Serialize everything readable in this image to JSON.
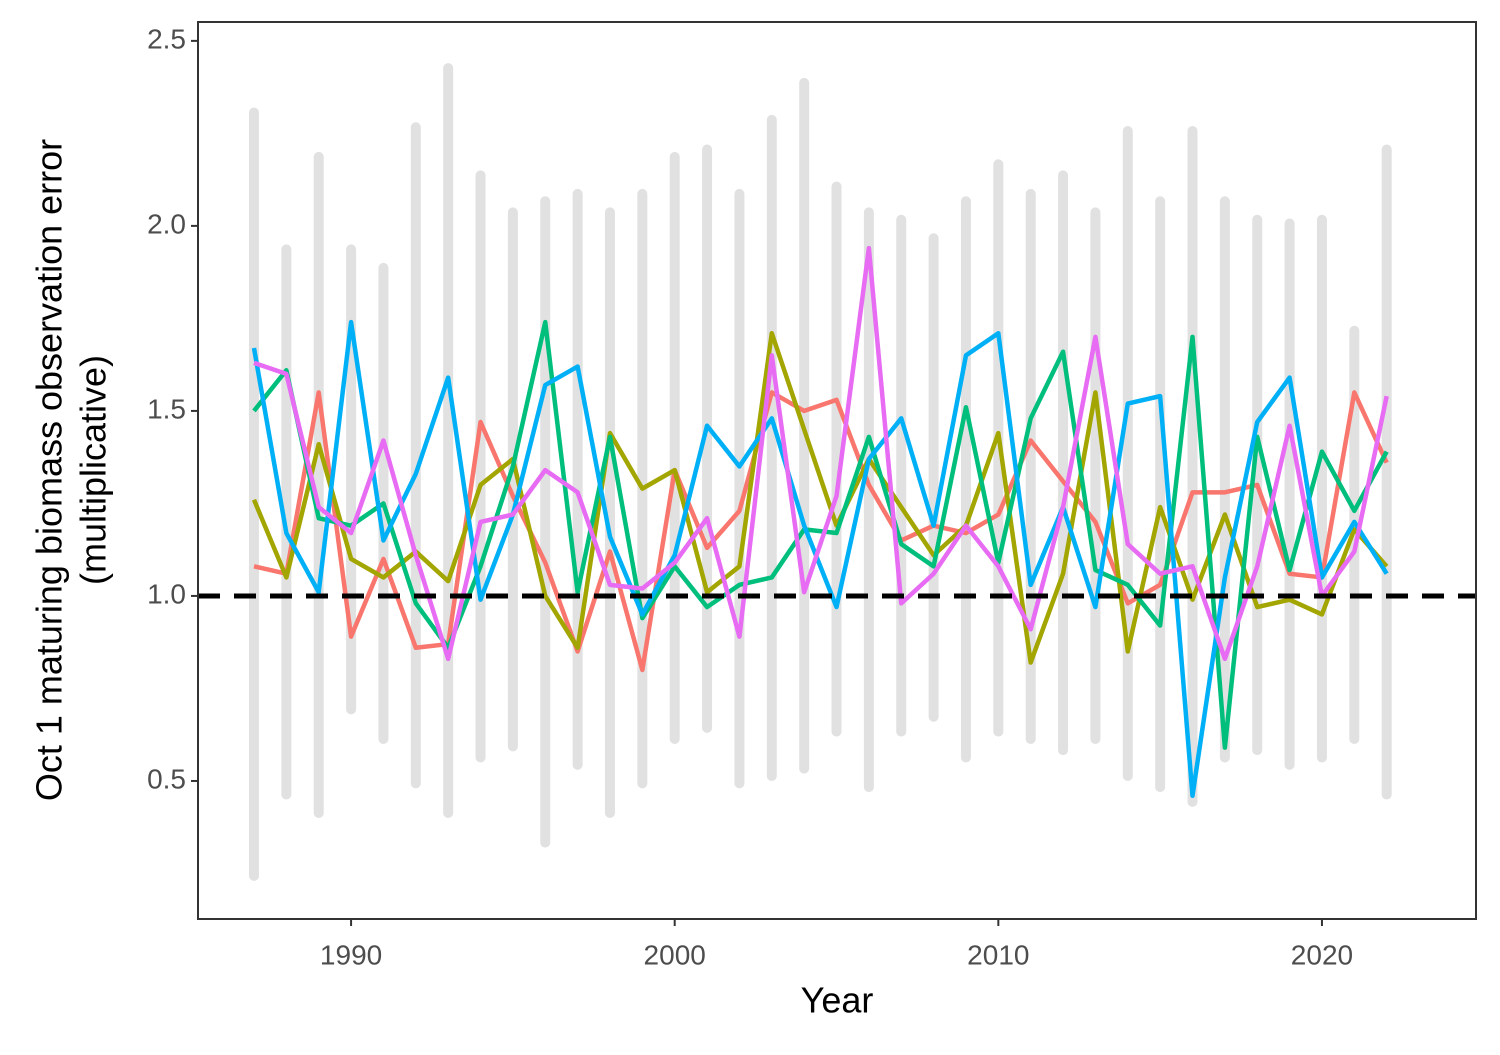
{
  "chart_data": {
    "type": "line",
    "xlabel": "Year",
    "ylabel": [
      "Oct 1 maturing biomass observation error",
      "(multiplicative)"
    ],
    "x": [
      1987,
      1988,
      1989,
      1990,
      1991,
      1992,
      1993,
      1994,
      1995,
      1996,
      1997,
      1998,
      1999,
      2000,
      2001,
      2002,
      2003,
      2004,
      2005,
      2006,
      2007,
      2008,
      2009,
      2010,
      2011,
      2012,
      2013,
      2014,
      2015,
      2016,
      2017,
      2018,
      2019,
      2020,
      2021,
      2022
    ],
    "xlim": [
      1985.27,
      2024.76
    ],
    "xticks": [
      1990,
      2000,
      2010,
      2020
    ],
    "ylim": [
      0.127,
      2.551
    ],
    "yticks": [
      0.5,
      {
        "value": 1,
        "label": "1.0"
      },
      1.5,
      {
        "value": 2,
        "label": "2.0"
      },
      2.5
    ],
    "hline": 1,
    "background": {
      "color": "#bdbdbd",
      "low": [
        0.23,
        0.45,
        0.4,
        0.68,
        0.6,
        0.48,
        0.4,
        0.55,
        0.58,
        0.32,
        0.53,
        0.4,
        0.48,
        0.6,
        0.63,
        0.48,
        0.5,
        0.52,
        0.62,
        0.47,
        0.62,
        0.66,
        0.55,
        0.62,
        0.6,
        0.57,
        0.6,
        0.5,
        0.47,
        0.43,
        0.55,
        0.57,
        0.53,
        0.55,
        0.6,
        0.45
      ],
      "high": [
        2.32,
        1.95,
        2.2,
        1.95,
        1.9,
        2.28,
        2.44,
        2.15,
        2.05,
        2.08,
        2.1,
        2.05,
        2.1,
        2.2,
        2.22,
        2.1,
        2.3,
        2.4,
        2.12,
        2.05,
        2.03,
        1.98,
        2.08,
        2.18,
        2.1,
        2.15,
        2.05,
        2.27,
        2.08,
        2.27,
        2.08,
        2.03,
        2.02,
        2.03,
        1.73,
        2.22
      ]
    },
    "series": [
      {
        "color": "#F8766D",
        "values": [
          1.08,
          1.06,
          1.55,
          0.89,
          1.1,
          0.86,
          0.87,
          1.47,
          1.27,
          1.09,
          0.85,
          1.12,
          0.8,
          1.34,
          1.13,
          1.23,
          1.55,
          1.5,
          1.53,
          1.3,
          1.15,
          1.19,
          1.17,
          1.22,
          1.42,
          1.31,
          1.2,
          0.98,
          1.03,
          1.28,
          1.28,
          1.3,
          1.06,
          1.05,
          1.55,
          1.36
        ]
      },
      {
        "color": "#A3A500",
        "values": [
          1.26,
          1.05,
          1.41,
          1.1,
          1.05,
          1.12,
          1.04,
          1.3,
          1.37,
          1.0,
          0.86,
          1.44,
          1.29,
          1.34,
          1.01,
          1.08,
          1.71,
          1.45,
          1.19,
          1.37,
          1.24,
          1.11,
          1.19,
          1.44,
          0.82,
          1.06,
          1.55,
          0.85,
          1.24,
          0.99,
          1.22,
          0.97,
          0.99,
          0.95,
          1.18,
          1.08
        ]
      },
      {
        "color": "#00BF7D",
        "values": [
          1.5,
          1.61,
          1.21,
          1.19,
          1.25,
          0.98,
          0.86,
          1.08,
          1.35,
          1.74,
          1.01,
          1.43,
          0.94,
          1.08,
          0.97,
          1.03,
          1.05,
          1.18,
          1.17,
          1.43,
          1.14,
          1.08,
          1.51,
          1.09,
          1.48,
          1.66,
          1.07,
          1.03,
          0.92,
          1.7,
          0.59,
          1.43,
          1.07,
          1.39,
          1.23,
          1.39
        ]
      },
      {
        "color": "#00B0F6",
        "values": [
          1.67,
          1.17,
          1.01,
          1.74,
          1.15,
          1.33,
          1.59,
          0.99,
          1.22,
          1.57,
          1.62,
          1.16,
          0.95,
          1.11,
          1.46,
          1.35,
          1.48,
          1.19,
          0.97,
          1.37,
          1.48,
          1.19,
          1.65,
          1.71,
          1.03,
          1.24,
          0.97,
          1.52,
          1.54,
          0.46,
          1.05,
          1.47,
          1.59,
          1.05,
          1.2,
          1.06
        ]
      },
      {
        "color": "#E76BF3",
        "values": [
          1.63,
          1.6,
          1.24,
          1.17,
          1.42,
          1.11,
          0.83,
          1.2,
          1.22,
          1.34,
          1.28,
          1.03,
          1.02,
          1.09,
          1.21,
          0.89,
          1.65,
          1.01,
          1.27,
          1.94,
          0.98,
          1.06,
          1.19,
          1.08,
          0.91,
          1.24,
          1.7,
          1.14,
          1.06,
          1.08,
          0.83,
          1.08,
          1.46,
          1.0,
          1.12,
          1.54
        ]
      }
    ]
  }
}
